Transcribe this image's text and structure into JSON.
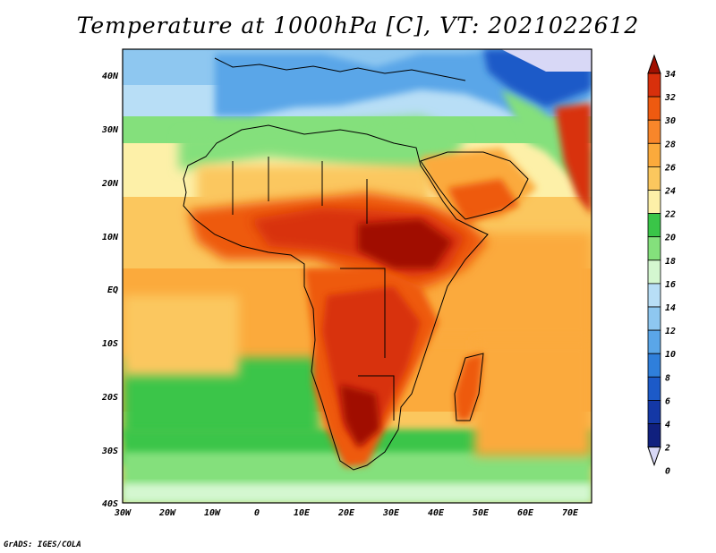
{
  "title": "Temperature at 1000hPa [C], VT: 2021022612",
  "credit": "GrADS: IGES/COLA",
  "map": {
    "projection": "latlon",
    "lon_range": [
      -30,
      75
    ],
    "lat_range": [
      -40,
      45
    ],
    "lon_ticks": [
      "30W",
      "20W",
      "10W",
      "0",
      "10E",
      "20E",
      "30E",
      "40E",
      "50E",
      "60E",
      "70E"
    ],
    "lat_ticks": [
      "40N",
      "30N",
      "20N",
      "10N",
      "EQ",
      "10S",
      "20S",
      "30S",
      "40S"
    ],
    "regions": {
      "sahara_interior_c": 25,
      "tropical_africa_max_c": 33,
      "south_atlantic_c": 20,
      "southern_ocean_c": 18,
      "mediterranean_c": 14,
      "central_asia_min_c": 2
    }
  },
  "colorbar": {
    "levels": [
      "34",
      "32",
      "30",
      "28",
      "26",
      "24",
      "22",
      "20",
      "18",
      "16",
      "14",
      "12",
      "10",
      "8",
      "6",
      "4",
      "2",
      "0"
    ],
    "colors": [
      "#a01000",
      "#d8300c",
      "#ee5a10",
      "#f8862a",
      "#fbaa3c",
      "#fbc75e",
      "#fdf0a8",
      "#3ac548",
      "#84e07c",
      "#d4f7d0",
      "#b8def6",
      "#8ec7f0",
      "#5aa6e8",
      "#2f7fdb",
      "#1c5ac8",
      "#1438a6",
      "#10207e",
      "#d8d8f6"
    ]
  }
}
